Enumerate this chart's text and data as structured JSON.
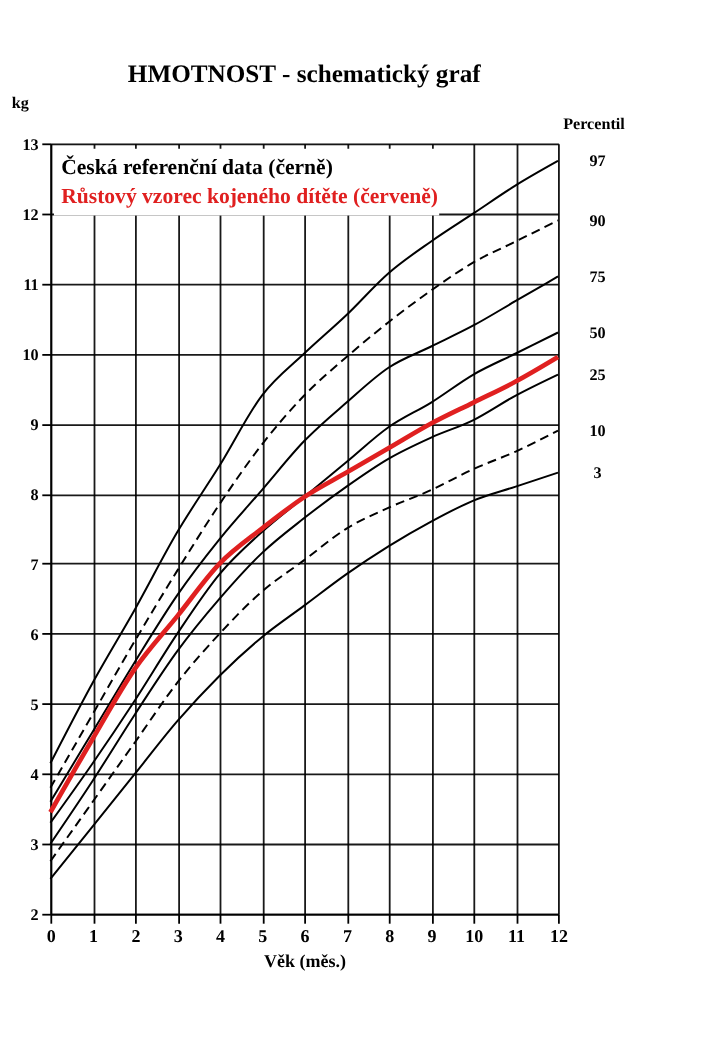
{
  "chart_data": {
    "type": "line",
    "title": "HMOTNOST - schematický graf",
    "xlabel": "Věk (měs.)",
    "ylabel": "kg",
    "legend_title": "Percentil",
    "annotations": [
      "Česká referenční data (černě)"
    ],
    "x": [
      0,
      1,
      2,
      3,
      4,
      5,
      6,
      7,
      8,
      9,
      10,
      11,
      12
    ],
    "series": [
      {
        "name": "97",
        "color": "#000000",
        "values": [
          4.15,
          5.3,
          6.35,
          7.45,
          8.4,
          9.4,
          10.0,
          10.55,
          11.15,
          11.6,
          12.0,
          12.4,
          12.75
        ]
      },
      {
        "name": "90",
        "color": "#000000",
        "line_style": "dashed",
        "values": [
          3.8,
          4.85,
          5.9,
          6.9,
          7.85,
          8.7,
          9.4,
          9.95,
          10.45,
          10.9,
          11.3,
          11.6,
          11.9
        ]
      },
      {
        "name": "75",
        "color": "#000000",
        "values": [
          3.6,
          4.6,
          5.6,
          6.55,
          7.35,
          8.05,
          8.75,
          9.3,
          9.8,
          10.1,
          10.4,
          10.75,
          11.1
        ]
      },
      {
        "name": "50",
        "color": "#000000",
        "values": [
          3.3,
          4.15,
          5.05,
          6.0,
          6.85,
          7.45,
          7.95,
          8.45,
          8.95,
          9.3,
          9.7,
          10.0,
          10.3
        ]
      },
      {
        "name": "25",
        "color": "#000000",
        "values": [
          3.0,
          3.9,
          4.85,
          5.75,
          6.5,
          7.15,
          7.65,
          8.1,
          8.5,
          8.8,
          9.05,
          9.4,
          9.7
        ]
      },
      {
        "name": "10",
        "color": "#000000",
        "line_style": "dashed",
        "values": [
          2.75,
          3.6,
          4.45,
          5.3,
          6.0,
          6.6,
          7.05,
          7.5,
          7.8,
          8.05,
          8.35,
          8.6,
          8.9
        ]
      },
      {
        "name": "3",
        "color": "#000000",
        "values": [
          2.5,
          3.25,
          4.0,
          4.75,
          5.4,
          5.95,
          6.4,
          6.85,
          7.25,
          7.6,
          7.9,
          8.1,
          8.3
        ]
      },
      {
        "name": "Růstový vzorec kojeného dítěte (červeně)",
        "color": "#e02020",
        "values": [
          3.45,
          4.5,
          5.5,
          6.25,
          7.0,
          7.5,
          7.95,
          8.3,
          8.65,
          9.0,
          9.3,
          9.6,
          9.95
        ]
      }
    ],
    "xlim": [
      0,
      12
    ],
    "xticks": [
      0,
      1,
      2,
      3,
      4,
      5,
      6,
      7,
      8,
      9,
      10,
      11,
      12
    ],
    "ylim": [
      2,
      13
    ],
    "yticks": [
      2,
      3,
      4,
      5,
      6,
      7,
      8,
      9,
      10,
      11,
      12,
      13
    ],
    "grid": true,
    "line_style": "solid",
    "marker": "none",
    "legend": "right"
  }
}
